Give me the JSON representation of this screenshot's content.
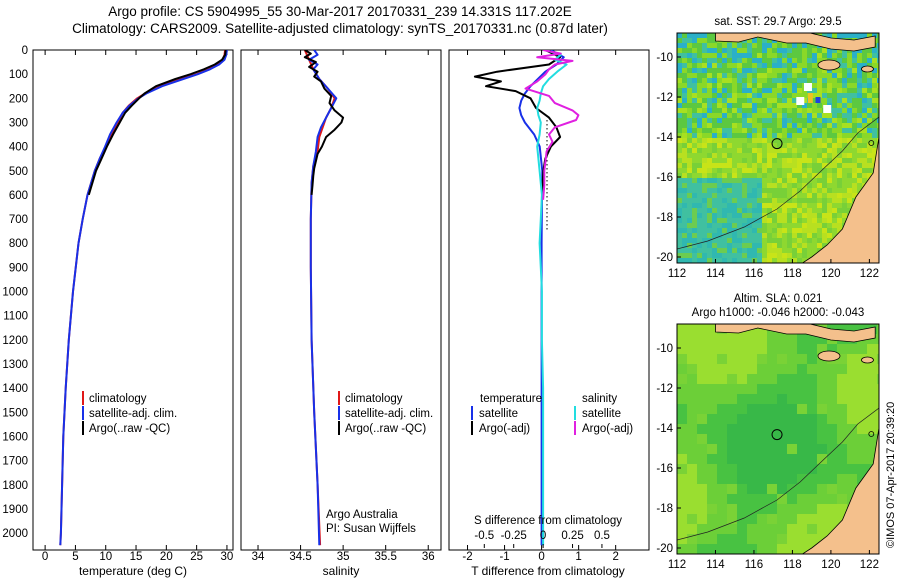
{
  "header": {
    "title_line1": "Argo profile: CS 5904995_55 30-Mar-2017 20170331_239 14.331S 117.202E",
    "title_line2": "Climatology: CARS2009. Satellite-adjusted climatology: synTS_20170331.nc (0.87d later)"
  },
  "colors": {
    "climatology": "#e01818",
    "satellite_clim": "#1830e8",
    "argo": "#000000",
    "satellite_salinity": "#22dde0",
    "argo_adj_salinity": "#e020e0",
    "land": "#f4c08c"
  },
  "depth_axis": {
    "ticks": [
      "0",
      "100",
      "200",
      "300",
      "400",
      "500",
      "600",
      "700",
      "800",
      "900",
      "1000",
      "1100",
      "1200",
      "1300",
      "1400",
      "1500",
      "1600",
      "1700",
      "1800",
      "1900",
      "2000"
    ],
    "range": [
      0,
      2070
    ]
  },
  "chart_data": [
    {
      "type": "line",
      "name": "temperature-panel",
      "xlabel": "temperature (deg C)",
      "xlim": [
        -2,
        31
      ],
      "xticks": [
        "0",
        "5",
        "10",
        "15",
        "20",
        "25",
        "30"
      ],
      "legend": [
        "climatology",
        "satellite-adj. clim.",
        "Argo(..raw -QC)"
      ],
      "series": [
        {
          "name": "climatology",
          "depth": [
            0,
            20,
            40,
            60,
            80,
            100,
            120,
            150,
            180,
            200,
            230,
            260,
            300,
            350,
            400,
            450,
            500,
            600,
            700,
            800,
            1000,
            1200,
            1400,
            1600,
            1800,
            2000,
            2050
          ],
          "values": [
            29.7,
            29.6,
            29.3,
            28.5,
            27.0,
            25.0,
            22.5,
            19.0,
            16.5,
            15.2,
            13.8,
            12.8,
            12.0,
            11.0,
            10.0,
            9.0,
            8.2,
            7.0,
            6.2,
            5.5,
            4.6,
            3.9,
            3.4,
            3.0,
            2.8,
            2.6,
            2.5
          ]
        },
        {
          "name": "satellite-adj. clim.",
          "depth": [
            0,
            20,
            40,
            60,
            80,
            100,
            120,
            150,
            180,
            200,
            230,
            260,
            300,
            350,
            400,
            450,
            500,
            600,
            700,
            800,
            1000,
            1200,
            1400,
            1600,
            1800,
            2000,
            2050
          ],
          "values": [
            30.0,
            29.9,
            29.6,
            28.7,
            27.2,
            25.2,
            22.8,
            19.3,
            16.7,
            15.4,
            13.9,
            12.8,
            11.8,
            10.7,
            9.9,
            9.0,
            8.2,
            7.0,
            6.2,
            5.5,
            4.6,
            3.9,
            3.4,
            3.0,
            2.8,
            2.6,
            2.5
          ]
        },
        {
          "name": "Argo(..raw -QC)",
          "depth": [
            0,
            20,
            40,
            60,
            80,
            100,
            120,
            150,
            180,
            200,
            230,
            260,
            300,
            350,
            400,
            450,
            500,
            600
          ],
          "values": [
            29.8,
            29.7,
            29.2,
            28.0,
            26.2,
            24.0,
            21.5,
            18.3,
            16.4,
            15.5,
            14.3,
            13.2,
            12.3,
            11.2,
            10.2,
            9.3,
            8.4,
            7.2
          ]
        }
      ]
    },
    {
      "type": "line",
      "name": "salinity-panel",
      "xlabel": "salinity",
      "xlim": [
        33.8,
        36.15
      ],
      "xticks": [
        "34",
        "34.5",
        "35",
        "35.5",
        "36"
      ],
      "legend": [
        "climatology",
        "satellite-adj. clim.",
        "Argo(..raw -QC)"
      ],
      "annotation": [
        "Argo Australia",
        "PI: Susan Wijffels"
      ],
      "series": [
        {
          "name": "climatology",
          "depth": [
            0,
            40,
            80,
            120,
            160,
            200,
            240,
            280,
            320,
            360,
            420,
            480,
            550,
            700,
            900,
            1200,
            1500,
            1800,
            2050
          ],
          "values": [
            34.55,
            34.6,
            34.65,
            34.72,
            34.82,
            34.9,
            34.86,
            34.8,
            34.76,
            34.72,
            34.7,
            34.65,
            34.63,
            34.62,
            34.62,
            34.63,
            34.66,
            34.7,
            34.73
          ]
        },
        {
          "name": "satellite-adj. clim.",
          "depth": [
            0,
            20,
            40,
            60,
            80,
            120,
            160,
            200,
            240,
            280,
            320,
            360,
            420,
            480,
            550,
            700,
            900,
            1200,
            1500,
            1800,
            2050
          ],
          "values": [
            34.66,
            34.7,
            34.6,
            34.7,
            34.65,
            34.72,
            34.82,
            34.92,
            34.86,
            34.8,
            34.74,
            34.7,
            34.68,
            34.65,
            34.63,
            34.62,
            34.62,
            34.63,
            34.66,
            34.7,
            34.72
          ]
        },
        {
          "name": "Argo(..raw -QC)",
          "depth": [
            0,
            15,
            30,
            50,
            70,
            90,
            110,
            130,
            160,
            190,
            220,
            250,
            280,
            300,
            330,
            360,
            400,
            430,
            460,
            490,
            520,
            560,
            600
          ],
          "values": [
            34.55,
            34.62,
            34.55,
            34.68,
            34.6,
            34.7,
            34.66,
            34.74,
            34.78,
            34.86,
            34.84,
            34.9,
            35.0,
            34.98,
            34.9,
            34.8,
            34.75,
            34.7,
            34.68,
            34.66,
            34.65,
            34.64,
            34.63
          ]
        }
      ]
    },
    {
      "type": "line",
      "name": "difference-panel",
      "xlabel": "T difference from climatology",
      "x2label": "S difference from climatology",
      "xlim": [
        -2.5,
        2.9
      ],
      "xticks": [
        "-2",
        "-1",
        "0",
        "1",
        "2"
      ],
      "x2lim": [
        -0.8,
        0.9
      ],
      "x2ticks": [
        "-0.5",
        "-0.25",
        "0",
        "0.25",
        "0.5"
      ],
      "legend_temperature": {
        "heading": "temperature",
        "items": [
          "satellite",
          "Argo(-adj)"
        ]
      },
      "legend_salinity": {
        "heading": "salinity",
        "items": [
          "satellite",
          "Argo(-adj)"
        ]
      },
      "series": [
        {
          "name": "temperature satellite",
          "depth": [
            0,
            30,
            60,
            90,
            120,
            150,
            180,
            210,
            240,
            270,
            300,
            350,
            400,
            500,
            600,
            800,
            1000,
            1300,
            1600,
            1900,
            2050
          ],
          "values": [
            0.25,
            0.6,
            0.4,
            0.1,
            -0.1,
            -0.3,
            -0.45,
            -0.55,
            -0.6,
            -0.55,
            -0.45,
            -0.2,
            -0.05,
            0.02,
            0.01,
            0.0,
            0.0,
            0.0,
            0.0,
            0.0,
            0.0
          ]
        },
        {
          "name": "temperature Argo(-adj)",
          "depth": [
            0,
            30,
            60,
            90,
            110,
            130,
            150,
            170,
            200,
            240,
            280,
            320,
            360,
            400,
            450,
            500,
            550,
            600
          ],
          "values": [
            0.1,
            0.5,
            0.2,
            -1.2,
            -1.8,
            -1.1,
            -1.5,
            -0.7,
            -0.3,
            -0.15,
            0.2,
            0.4,
            0.5,
            0.25,
            0.1,
            0.05,
            0.03,
            0.02
          ]
        },
        {
          "name": "salinity satellite",
          "depth": [
            0,
            20,
            40,
            60,
            90,
            120,
            150,
            180,
            210,
            240,
            270,
            300,
            350,
            400,
            500,
            600,
            700,
            800,
            900,
            1000,
            1200,
            1400,
            1600,
            2050
          ],
          "values": [
            0.02,
            0.15,
            0.1,
            0.2,
            0.12,
            0.05,
            0.0,
            -0.02,
            -0.03,
            -0.05,
            -0.04,
            -0.02,
            -0.03,
            -0.05,
            -0.03,
            -0.01,
            -0.02,
            -0.03,
            -0.02,
            -0.01,
            -0.01,
            0.0,
            0.0,
            0.0
          ]
        },
        {
          "name": "salinity Argo(-adj)",
          "depth": [
            0,
            15,
            30,
            45,
            60,
            80,
            100,
            130,
            160,
            190,
            220,
            250,
            270,
            290,
            320,
            350,
            380,
            420,
            460,
            500,
            560,
            620
          ],
          "values": [
            0.0,
            0.15,
            -0.05,
            0.25,
            0.1,
            0.05,
            0.02,
            -0.05,
            -0.15,
            0.05,
            0.1,
            0.25,
            0.3,
            0.28,
            0.1,
            0.05,
            0.08,
            0.03,
            0.02,
            0.01,
            0.01,
            0.0
          ]
        }
      ]
    },
    {
      "type": "heatmap",
      "name": "sst-map",
      "title": "sat. SST: 29.7 Argo: 29.5",
      "xlim": [
        112,
        122.5
      ],
      "ylim": [
        -20.3,
        -8.8
      ],
      "xticks": [
        "112",
        "114",
        "116",
        "118",
        "120",
        "122"
      ],
      "yticks": [
        "-10",
        "-12",
        "-14",
        "-16",
        "-18",
        "-20"
      ],
      "argo_position": {
        "lon": 117.2,
        "lat": -14.33
      }
    },
    {
      "type": "heatmap",
      "name": "sla-map",
      "title": "Altim. SLA: 0.021",
      "subtitle": "Argo h1000: -0.046 h2000: -0.043",
      "xlim": [
        112,
        122.5
      ],
      "ylim": [
        -20.3,
        -8.8
      ],
      "xticks": [
        "112",
        "114",
        "116",
        "118",
        "120",
        "122"
      ],
      "yticks": [
        "-10",
        "-12",
        "-14",
        "-16",
        "-18",
        "-20"
      ],
      "argo_position": {
        "lon": 117.2,
        "lat": -14.33
      }
    }
  ],
  "footer": {
    "credit": "©IMOS 07-Apr-2017 20:39:20"
  }
}
